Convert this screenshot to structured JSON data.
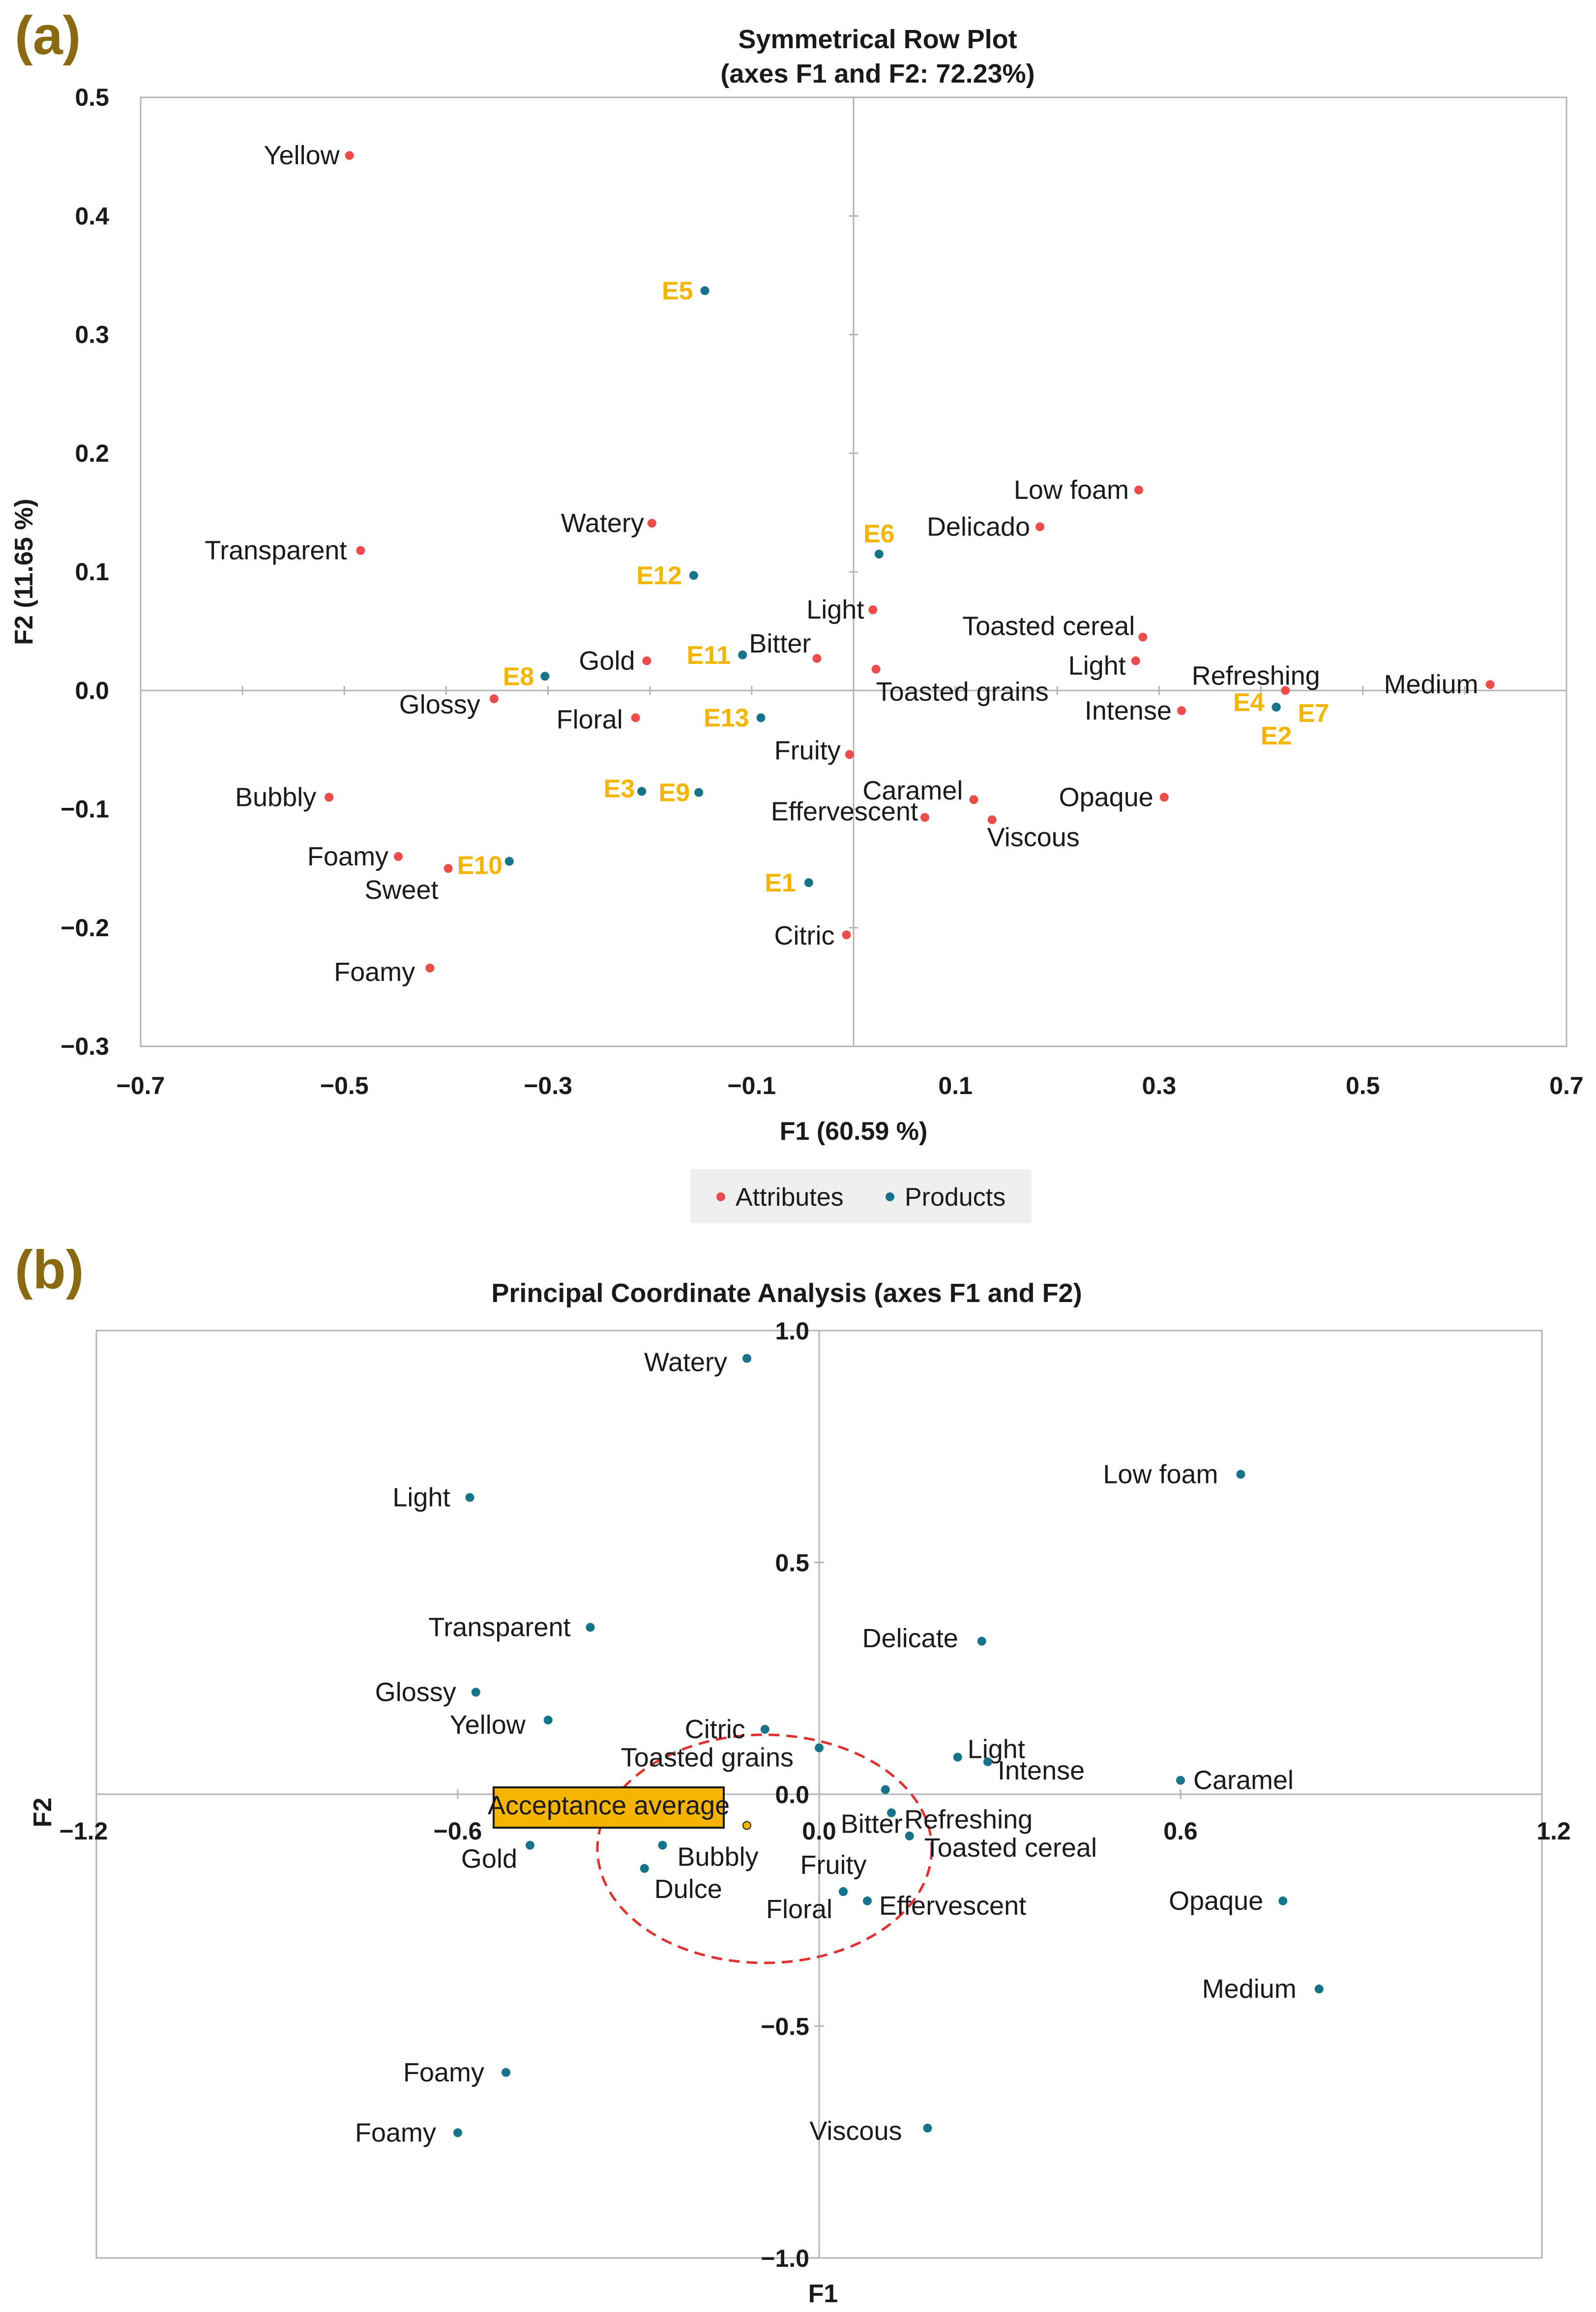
{
  "panels": {
    "a": "(a)",
    "b": "(b)"
  },
  "legend": {
    "attributes": "Attributes",
    "products": "Products"
  },
  "colors": {
    "attribute": "#ee4b4b",
    "product": "#16748a",
    "product_label": "#f5b400",
    "inner_label": "#2424a6",
    "acceptance": "#f5b400",
    "ellipse": "#e23030"
  },
  "chart_data": [
    {
      "type": "scatter",
      "title": "Symmetrical Row Plot",
      "subtitle": "(axes F1 and F2: 72.23%)",
      "xlabel": "F1 (60.59 %)",
      "ylabel": "F2 (11.65 %)",
      "xlim": [
        -0.7,
        0.7
      ],
      "ylim": [
        -0.3,
        0.5
      ],
      "xticks": [
        -0.7,
        -0.5,
        -0.3,
        -0.1,
        0.1,
        0.3,
        0.5,
        0.7
      ],
      "xtick_labels": [
        "−0.7",
        "−0.5",
        "−0.3",
        "−0.1",
        "0.1",
        "0.3",
        "0.5",
        "0.7"
      ],
      "yticks": [
        0.5,
        0.4,
        0.3,
        0.2,
        0.1,
        0.0,
        -0.1,
        -0.2,
        -0.3
      ],
      "ytick_labels": [
        "0.5",
        "0.4",
        "0.3",
        "0.2",
        "0.1",
        "0.0",
        "−0.1",
        "−0.2",
        "−0.3"
      ],
      "legend_position": "bottom",
      "grid": false,
      "series": [
        {
          "name": "Attributes",
          "points": [
            {
              "label": "Yellow",
              "x": -0.495,
              "y": 0.451
            },
            {
              "label": "Transparent",
              "x": -0.484,
              "y": 0.118
            },
            {
              "label": "Watery",
              "x": -0.198,
              "y": 0.141
            },
            {
              "label": "Gold",
              "x": -0.203,
              "y": 0.025
            },
            {
              "label": "Glossy",
              "x": -0.353,
              "y": -0.007
            },
            {
              "label": "Floral",
              "x": -0.214,
              "y": -0.023
            },
            {
              "label": "Bubbly",
              "x": -0.515,
              "y": -0.09
            },
            {
              "label": "Foamy",
              "x": -0.447,
              "y": -0.14
            },
            {
              "label": "Sweet",
              "x": -0.398,
              "y": -0.15
            },
            {
              "label": "Foamy",
              "x": -0.416,
              "y": -0.234
            },
            {
              "label": "Bitter",
              "x": -0.036,
              "y": 0.027
            },
            {
              "label": "Light",
              "x": 0.019,
              "y": 0.068
            },
            {
              "label": "Toasted grains",
              "x": 0.022,
              "y": 0.018
            },
            {
              "label": "Fruity",
              "x": -0.004,
              "y": -0.054
            },
            {
              "label": "Effervescent",
              "x": 0.07,
              "y": -0.107
            },
            {
              "label": "Citric",
              "x": -0.007,
              "y": -0.206
            },
            {
              "label": "Caramel",
              "x": 0.118,
              "y": -0.092
            },
            {
              "label": "Viscous",
              "x": 0.136,
              "y": -0.109
            },
            {
              "label": "Delicado",
              "x": 0.183,
              "y": 0.138
            },
            {
              "label": "Low foam",
              "x": 0.28,
              "y": 0.169
            },
            {
              "label": "Toasted cereal",
              "x": 0.284,
              "y": 0.045
            },
            {
              "label": "Light",
              "x": 0.277,
              "y": 0.025
            },
            {
              "label": "Intense",
              "x": 0.322,
              "y": -0.017
            },
            {
              "label": "Opaque",
              "x": 0.305,
              "y": -0.09
            },
            {
              "label": "Refreshing",
              "x": 0.424,
              "y": 0.0
            },
            {
              "label": "Medium",
              "x": 0.625,
              "y": 0.005
            }
          ]
        },
        {
          "name": "Products",
          "points": [
            {
              "label": "E5",
              "x": -0.146,
              "y": 0.337
            },
            {
              "label": "E6",
              "x": 0.025,
              "y": 0.115
            },
            {
              "label": "E12",
              "x": -0.157,
              "y": 0.097
            },
            {
              "label": "E11",
              "x": -0.109,
              "y": 0.03
            },
            {
              "label": "E8",
              "x": -0.303,
              "y": 0.012
            },
            {
              "label": "E13",
              "x": -0.091,
              "y": -0.023
            },
            {
              "label": "E3",
              "x": -0.208,
              "y": -0.085
            },
            {
              "label": "E9",
              "x": -0.152,
              "y": -0.086
            },
            {
              "label": "E10",
              "x": -0.338,
              "y": -0.144
            },
            {
              "label": "E1",
              "x": -0.044,
              "y": -0.162
            },
            {
              "label": "E4",
              "x": 0.415,
              "y": -0.014
            },
            {
              "label": "E7",
              "x": 0.415,
              "y": -0.014
            },
            {
              "label": "E2",
              "x": 0.415,
              "y": -0.014
            }
          ]
        }
      ]
    },
    {
      "type": "scatter",
      "title": "Principal Coordinate Analysis (axes F1 and F2)",
      "xlabel": "F1",
      "ylabel": "F2",
      "xlim": [
        -1.2,
        1.2
      ],
      "ylim": [
        -1.0,
        1.0
      ],
      "xticks": [
        -1.2,
        -0.6,
        0.0,
        0.6,
        1.2
      ],
      "xtick_labels": [
        "−1.2",
        "−0.6",
        "0.0",
        "0.6",
        "1.2"
      ],
      "yticks": [
        1.0,
        0.5,
        -0.5,
        -1.0
      ],
      "ytick_labels": [
        "1.0",
        "0.5",
        "−0.5",
        "−1.0"
      ],
      "grid": false,
      "points": [
        {
          "label": "Watery",
          "x": -0.12,
          "y": 0.94
        },
        {
          "label": "Light",
          "x": -0.58,
          "y": 0.64
        },
        {
          "label": "Transparent",
          "x": -0.38,
          "y": 0.36
        },
        {
          "label": "Glossy",
          "x": -0.57,
          "y": 0.22
        },
        {
          "label": "Yellow",
          "x": -0.45,
          "y": 0.16
        },
        {
          "label": "Gold",
          "x": -0.48,
          "y": -0.11
        },
        {
          "label": "Low foam",
          "x": 0.7,
          "y": 0.69
        },
        {
          "label": "Delicate",
          "x": 0.27,
          "y": 0.33
        },
        {
          "label": "Light",
          "x": 0.23,
          "y": 0.08
        },
        {
          "label": "Intense",
          "x": 0.28,
          "y": 0.07
        },
        {
          "label": "Caramel",
          "x": 0.6,
          "y": 0.03
        },
        {
          "label": "Opaque",
          "x": 0.77,
          "y": -0.23
        },
        {
          "label": "Medium",
          "x": 0.83,
          "y": -0.42
        },
        {
          "label": "Foamy",
          "x": -0.52,
          "y": -0.6
        },
        {
          "label": "Foamy",
          "x": -0.6,
          "y": -0.73
        },
        {
          "label": "Viscous",
          "x": 0.18,
          "y": -0.72
        },
        {
          "label": "Citric",
          "x": -0.09,
          "y": 0.14,
          "inner": true
        },
        {
          "label": "Toasted grains",
          "x": 0.0,
          "y": 0.1,
          "inner": true
        },
        {
          "label": "Bitter",
          "x": 0.11,
          "y": 0.01,
          "inner": true
        },
        {
          "label": "Refreshing",
          "x": 0.12,
          "y": -0.04,
          "inner": true
        },
        {
          "label": "Toasted cereal",
          "x": 0.15,
          "y": -0.09,
          "inner": true
        },
        {
          "label": "Bubbly",
          "x": -0.26,
          "y": -0.11,
          "inner": true
        },
        {
          "label": "Dulce",
          "x": -0.29,
          "y": -0.16,
          "inner": true
        },
        {
          "label": "Fruity",
          "x": 0.04,
          "y": -0.21,
          "inner": true
        },
        {
          "label": "Floral",
          "x": 0.04,
          "y": -0.21,
          "inner": true
        },
        {
          "label": "Effervescent",
          "x": 0.08,
          "y": -0.23,
          "inner": true
        }
      ],
      "acceptance": {
        "label": "Acceptance average",
        "x": -0.12,
        "y": -0.08
      }
    }
  ]
}
